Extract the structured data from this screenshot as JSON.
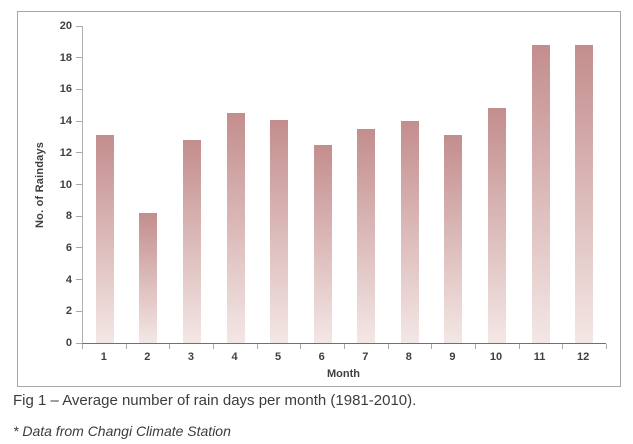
{
  "figure": {
    "caption": "Fig 1 – Average number of rain days per month (1981-2010).",
    "footnote": "* Data from Changi Climate Station"
  },
  "chart_data": {
    "type": "bar",
    "title": "",
    "xlabel": "Month",
    "ylabel": "No. of Raindays",
    "categories": [
      "1",
      "2",
      "3",
      "4",
      "5",
      "6",
      "7",
      "8",
      "9",
      "10",
      "11",
      "12"
    ],
    "values": [
      13.1,
      8.2,
      12.8,
      14.5,
      14.1,
      12.5,
      13.5,
      14.0,
      13.1,
      14.8,
      18.8,
      18.8
    ],
    "ylim": [
      0,
      20
    ],
    "yticks": [
      0,
      2,
      4,
      6,
      8,
      10,
      12,
      14,
      16,
      18,
      20
    ],
    "grid": false,
    "legend_position": "none",
    "colors": {
      "bar_gradient_top": "#c38d8d",
      "bar_gradient_bottom": "#f3e7e5",
      "axis_text": "#3f3f3f",
      "x_axis_line": "#707070",
      "y_axis_line": "#b0b0b0",
      "tick_mark": "#a8a8a8",
      "frame_border": "#a6a6a6",
      "caption_text": "#3c3c3c"
    }
  }
}
